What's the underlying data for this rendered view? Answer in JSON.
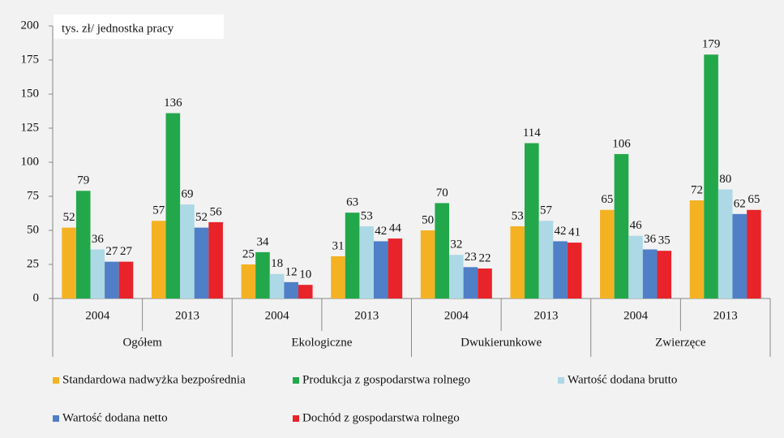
{
  "chart_data": {
    "type": "bar",
    "ylabel": "tys. zł/ jednostka pracy",
    "categories": [
      "2004",
      "2013",
      "2004",
      "2013",
      "2004",
      "2013",
      "2004",
      "2013"
    ],
    "category_groups": [
      "Ogółem",
      "Ekologiczne",
      "Dwukierunkowe",
      "Zwierzęce"
    ],
    "series": [
      {
        "name": "Standardowa nadwyżka bezpośrednia",
        "color": "#f4b223",
        "values": [
          52,
          57,
          25,
          31,
          50,
          53,
          65,
          72
        ]
      },
      {
        "name": "Produkcja z gospodarstwa rolnego",
        "color": "#22a84a",
        "values": [
          79,
          136,
          34,
          63,
          70,
          114,
          106,
          179
        ]
      },
      {
        "name": "Wartość dodana brutto",
        "color": "#add8e6",
        "values": [
          36,
          69,
          18,
          53,
          32,
          57,
          46,
          80
        ]
      },
      {
        "name": "Wartość dodana netto",
        "color": "#4f7fc7",
        "values": [
          27,
          52,
          12,
          42,
          23,
          42,
          36,
          62
        ]
      },
      {
        "name": "Dochód z gospodarstwa rolnego",
        "color": "#e8232a",
        "values": [
          27,
          56,
          10,
          44,
          22,
          41,
          35,
          65
        ]
      }
    ],
    "ylim": [
      0,
      200
    ],
    "yticks": [
      0,
      25,
      50,
      75,
      100,
      125,
      150,
      175,
      200
    ],
    "grid": false
  }
}
